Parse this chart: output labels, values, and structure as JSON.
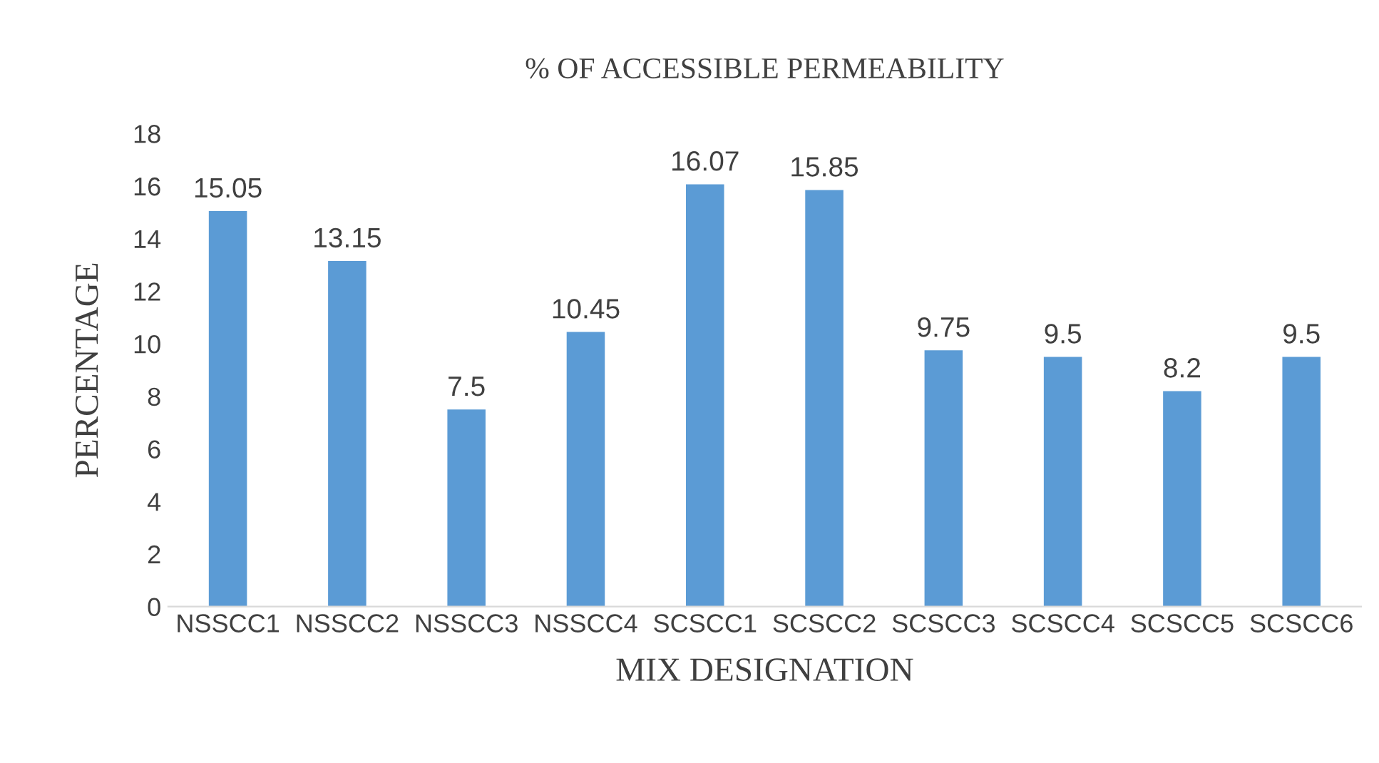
{
  "chart_data": {
    "type": "bar",
    "title": "% OF ACCESSIBLE PERMEABILITY",
    "xlabel": "MIX DESIGNATION",
    "ylabel": "PERCENTAGE",
    "categories": [
      "NSSCC1",
      "NSSCC2",
      "NSSCC3",
      "NSSCC4",
      "SCSCC1",
      "SCSCC2",
      "SCSCC3",
      "SCSCC4",
      "SCSCC5",
      "SCSCC6"
    ],
    "values": [
      15.05,
      13.15,
      7.5,
      10.45,
      16.07,
      15.85,
      9.75,
      9.5,
      8.2,
      9.5
    ],
    "color": "#5b9bd5",
    "ylim": [
      0,
      18
    ],
    "yticks": [
      0,
      2,
      4,
      6,
      8,
      10,
      12,
      14,
      16,
      18
    ],
    "grid": false,
    "data_labels": true
  }
}
